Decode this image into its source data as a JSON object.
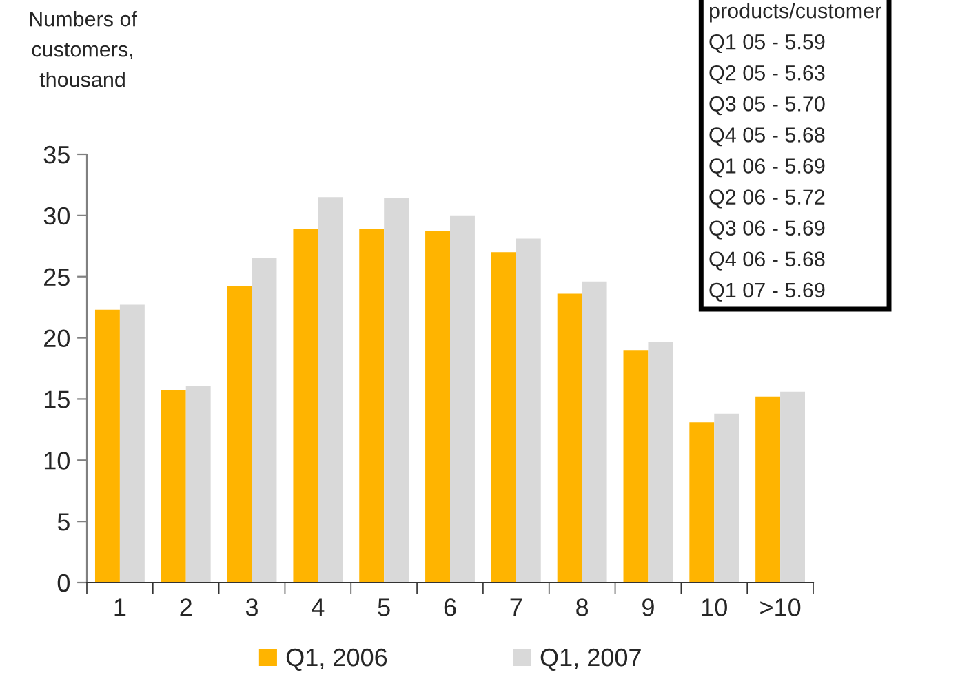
{
  "chart_data": {
    "type": "bar",
    "ylabel": "Numbers of\ncustomers,\nthousand",
    "categories": [
      "1",
      "2",
      "3",
      "4",
      "5",
      "6",
      "7",
      "8",
      "9",
      "10",
      ">10"
    ],
    "series": [
      {
        "name": "Q1, 2006",
        "color": "#ffb400",
        "values": [
          22.3,
          15.7,
          24.2,
          28.9,
          28.9,
          28.7,
          27.0,
          23.6,
          19.0,
          13.1,
          15.2
        ]
      },
      {
        "name": "Q1, 2007",
        "color": "#d9d9d9",
        "values": [
          22.7,
          16.1,
          26.5,
          31.5,
          31.4,
          30.0,
          28.1,
          24.6,
          19.7,
          13.8,
          15.6
        ]
      }
    ],
    "ylim": [
      0,
      35
    ],
    "yticks": [
      0,
      5,
      10,
      15,
      20,
      25,
      30,
      35
    ],
    "grid": false,
    "legend": "bottom",
    "annotations": [
      "products/customer\nQ1 05 - 5.59\nQ2 05 - 5.63\nQ3 05 - 5.70\nQ4 05 - 5.68\nQ1 06 - 5.69\nQ2 06 - 5.72\nQ3 06 - 5.69\nQ4 06 - 5.68\nQ1 07 - 5.69"
    ]
  }
}
